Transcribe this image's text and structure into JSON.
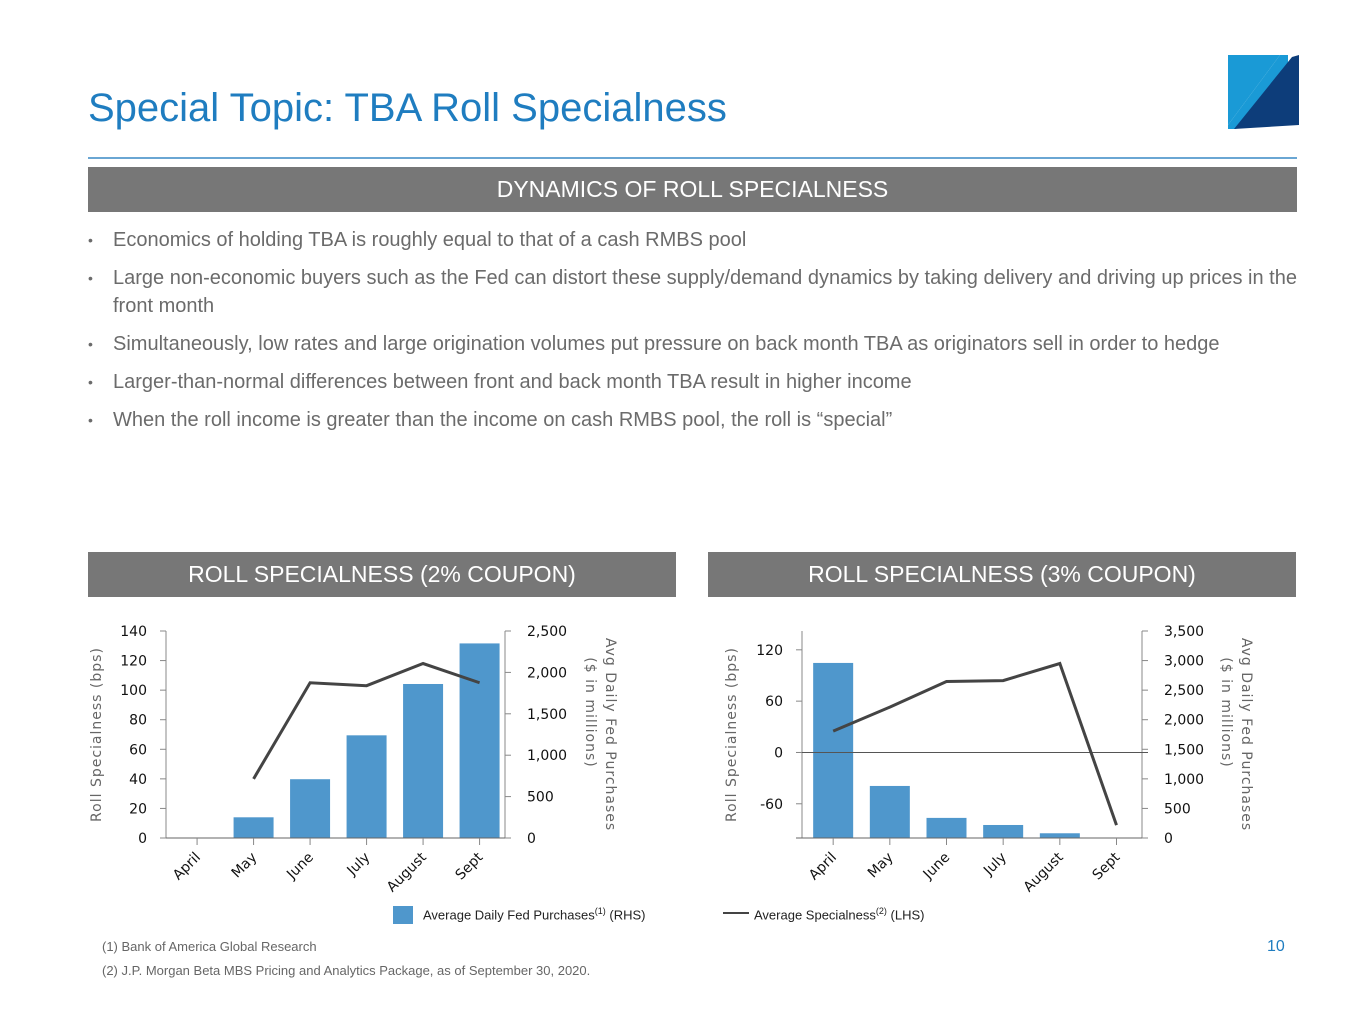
{
  "title": "Special Topic: TBA Roll Specialness",
  "section_header": "DYNAMICS OF ROLL SPECIALNESS",
  "bullets": [
    "Economics of holding TBA is roughly equal to that of a cash RMBS pool",
    "Large non-economic buyers such as the Fed can distort these supply/demand dynamics by taking delivery and driving up prices in the front month",
    "Simultaneously, low rates and large origination volumes put pressure on back month TBA as originators sell in order to hedge",
    "Larger-than-normal differences between front and back month TBA result in higher income",
    "When the roll income is greater than the income on cash RMBS pool, the roll is “special”"
  ],
  "bullet_glyph": "•",
  "legend": {
    "bars_label": "Average Daily Fed Purchases",
    "bars_sup": "(1)",
    "bars_suffix": " (RHS)",
    "line_label": "Average Specialness",
    "line_sup": "(2)",
    "line_suffix": " (LHS)"
  },
  "footnotes": [
    "(1)   Bank of America Global Research",
    "(2)   J.P. Morgan Beta MBS Pricing and Analytics Package, as of September 30, 2020."
  ],
  "page_number": "10",
  "colors": {
    "title": "#1f7dc0",
    "bar": "#4f97cc",
    "line": "#444444",
    "header_bg": "#777777",
    "logo_light": "#1a9ad6",
    "logo_dark": "#0d3d7a"
  },
  "chart_data": [
    {
      "type": "bar",
      "title": "ROLL SPECIALNESS (2% COUPON)",
      "categories": [
        "April",
        "May",
        "June",
        "July",
        "August",
        "Sept"
      ],
      "ylabel": "Roll Specialness (bps)",
      "y2label_1": "Avg Daily Fed Purchases",
      "y2label_2": "($ in millions)",
      "ylim": [
        0,
        140
      ],
      "yticks": [
        0,
        20,
        40,
        60,
        80,
        100,
        120,
        140
      ],
      "y2lim": [
        0,
        2500
      ],
      "y2ticks": [
        0,
        500,
        1000,
        1500,
        2000,
        2500
      ],
      "series": [
        {
          "name": "Average Daily Fed Purchases (RHS)",
          "type": "bar",
          "axis": "right",
          "values": [
            0,
            250,
            710,
            1240,
            1860,
            2350
          ]
        },
        {
          "name": "Average Specialness (LHS)",
          "type": "line",
          "axis": "left",
          "values": [
            null,
            40,
            105,
            103,
            118,
            105
          ]
        }
      ]
    },
    {
      "type": "bar",
      "title": "ROLL SPECIALNESS (3% COUPON)",
      "categories": [
        "April",
        "May",
        "June",
        "July",
        "August",
        "Sept"
      ],
      "ylabel": "Roll Specialness (bps)",
      "y2label_1": "Avg Daily Fed Purchases",
      "y2label_2": "($ in millions)",
      "ylim": [
        -100,
        142
      ],
      "yticks": [
        -60,
        0,
        60,
        120
      ],
      "y2lim": [
        0,
        3500
      ],
      "y2ticks": [
        0,
        500,
        1000,
        1500,
        2000,
        2500,
        3000,
        3500
      ],
      "series": [
        {
          "name": "Average Daily Fed Purchases (RHS)",
          "type": "bar",
          "axis": "right",
          "values": [
            2960,
            880,
            340,
            220,
            80,
            0
          ]
        },
        {
          "name": "Average Specialness (LHS)",
          "type": "line",
          "axis": "left",
          "values": [
            25,
            53,
            83,
            84,
            104,
            -85
          ]
        }
      ]
    }
  ]
}
